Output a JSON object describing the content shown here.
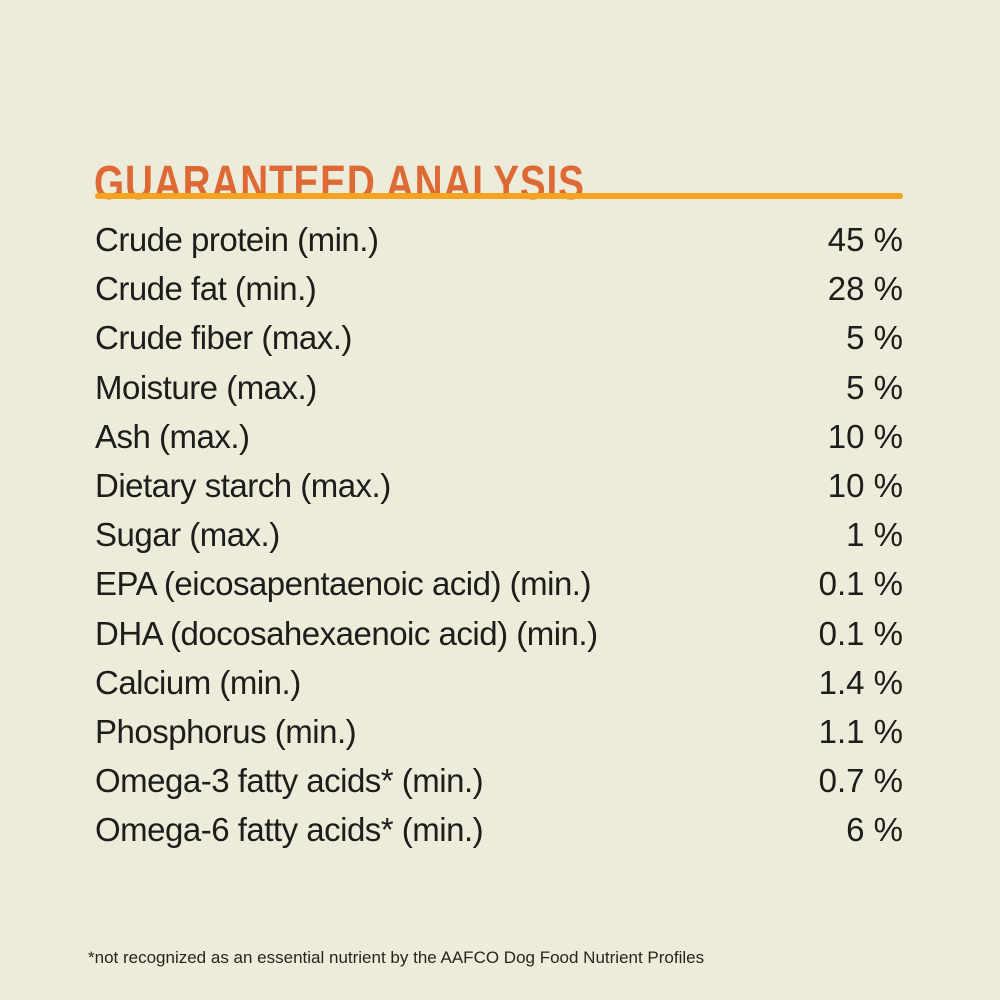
{
  "page": {
    "background_color": "#edebd9",
    "text_color": "#1d1d1b"
  },
  "header": {
    "title": "GUARANTEED ANALYSIS",
    "title_color": "#dd6a35",
    "divider_color": "#f6a41f"
  },
  "analysis": {
    "rows": [
      {
        "label": "Crude protein (min.)",
        "value": "45 %"
      },
      {
        "label": "Crude fat (min.)",
        "value": "28 %"
      },
      {
        "label": "Crude fiber (max.)",
        "value": "5 %"
      },
      {
        "label": "Moisture (max.)",
        "value": "5 %"
      },
      {
        "label": "Ash (max.)",
        "value": "10 %"
      },
      {
        "label": "Dietary starch (max.)",
        "value": "10 %"
      },
      {
        "label": "Sugar (max.)",
        "value": "1 %"
      },
      {
        "label": "EPA (eicosapentaenoic acid) (min.)",
        "value": "0.1 %"
      },
      {
        "label": "DHA (docosahexaenoic acid) (min.)",
        "value": "0.1 %"
      },
      {
        "label": "Calcium (min.)",
        "value": "1.4 %"
      },
      {
        "label": "Phosphorus (min.)",
        "value": "1.1 %"
      },
      {
        "label": "Omega-3 fatty acids* (min.)",
        "value": "0.7 %"
      },
      {
        "label": "Omega-6 fatty acids* (min.)",
        "value": "6 %"
      }
    ]
  },
  "footnote": {
    "text": "*not recognized as an essential nutrient by the AAFCO Dog Food Nutrient Profiles"
  }
}
